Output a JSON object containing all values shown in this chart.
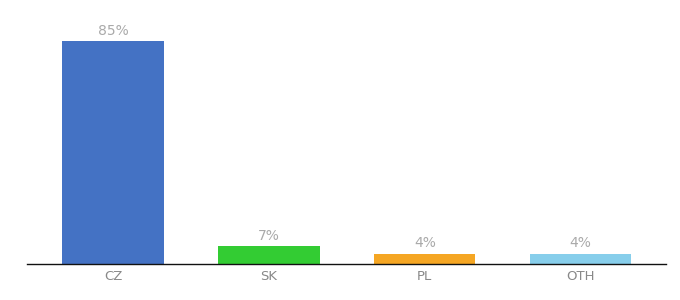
{
  "categories": [
    "CZ",
    "SK",
    "PL",
    "OTH"
  ],
  "values": [
    85,
    7,
    4,
    4
  ],
  "bar_colors": [
    "#4472c4",
    "#33cc33",
    "#f5a623",
    "#87ceeb"
  ],
  "label_color": "#aaaaaa",
  "label_fontsize": 10,
  "tick_fontsize": 9.5,
  "tick_color": "#888888",
  "background_color": "#ffffff",
  "ylim": [
    0,
    95
  ],
  "bar_width": 0.65
}
